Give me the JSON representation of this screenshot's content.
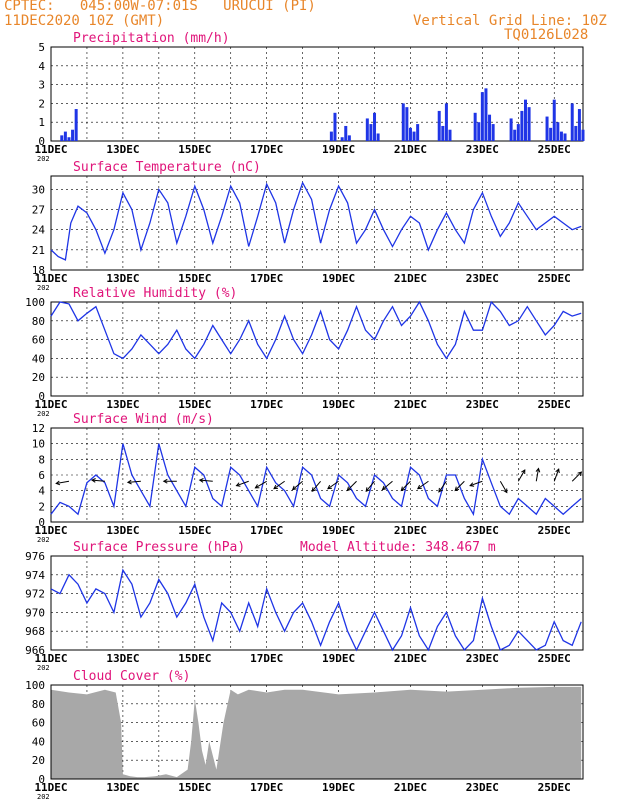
{
  "header": {
    "line1": "CPTEC:   045:00W-07:01S   URUCUI (PI)",
    "line2": "11DEC2020 10Z (GMT)",
    "grid_note": "Vertical Grid Line: 10Z",
    "code": "TQ0126L028"
  },
  "colors": {
    "header": "#e8862a",
    "title": "#e0147a",
    "line": "#1f35e6",
    "bar": "#1f35e6",
    "cloud": "#a8a8a8",
    "wind_arrow": "#000000"
  },
  "xaxis": {
    "start": "11DEC",
    "end": "26DEC 10Z",
    "tick_labels": [
      "11DEC",
      "13DEC",
      "15DEC",
      "17DEC",
      "19DEC",
      "21DEC",
      "23DEC",
      "25DEC"
    ],
    "tick_days": [
      0,
      2,
      4,
      6,
      8,
      10,
      12,
      14
    ],
    "year_fragment": "202"
  },
  "chart_data": [
    {
      "type": "bar",
      "name": "precipitation",
      "title": "Precipitation (mm/h)",
      "ylim": [
        0,
        5
      ],
      "yticks": [
        0,
        1,
        2,
        3,
        4,
        5
      ],
      "x_days": [
        0.3,
        0.4,
        0.5,
        0.6,
        0.7,
        7.8,
        7.9,
        8.1,
        8.2,
        8.3,
        8.8,
        8.9,
        9.0,
        9.1,
        9.8,
        9.9,
        10.0,
        10.1,
        10.2,
        10.8,
        10.9,
        11.0,
        11.1,
        11.8,
        11.9,
        12.0,
        12.1,
        12.2,
        12.3,
        12.8,
        12.9,
        13.0,
        13.1,
        13.2,
        13.3,
        13.8,
        13.9,
        14.0,
        14.1,
        14.2,
        14.3,
        14.5,
        14.6,
        14.7,
        14.8
      ],
      "values": [
        0.3,
        0.5,
        0.2,
        0.6,
        1.7,
        0.5,
        1.5,
        0.2,
        0.8,
        0.3,
        1.2,
        0.9,
        1.5,
        0.4,
        2.0,
        1.8,
        0.7,
        0.5,
        0.9,
        1.6,
        0.8,
        2.0,
        0.6,
        1.5,
        1.0,
        2.6,
        2.8,
        1.4,
        0.9,
        1.2,
        0.6,
        0.9,
        1.6,
        2.2,
        1.8,
        1.3,
        0.7,
        2.2,
        1.0,
        0.5,
        0.4,
        2.0,
        0.8,
        1.7,
        0.6
      ]
    },
    {
      "type": "line",
      "name": "surface_temperature",
      "title": "Surface Temperature (nC)",
      "ylim": [
        18,
        32
      ],
      "yticks": [
        18,
        21,
        24,
        27,
        30
      ],
      "x_days": [
        0,
        0.2,
        0.4,
        0.55,
        0.75,
        1.0,
        1.25,
        1.5,
        1.75,
        2.0,
        2.25,
        2.5,
        2.75,
        3.0,
        3.25,
        3.5,
        3.75,
        4.0,
        4.25,
        4.5,
        4.75,
        5.0,
        5.25,
        5.5,
        5.75,
        6.0,
        6.25,
        6.5,
        6.75,
        7.0,
        7.25,
        7.5,
        7.75,
        8.0,
        8.25,
        8.5,
        8.75,
        9.0,
        9.25,
        9.5,
        9.75,
        10.0,
        10.25,
        10.5,
        10.75,
        11.0,
        11.25,
        11.5,
        11.75,
        12.0,
        12.25,
        12.5,
        12.75,
        13.0,
        13.25,
        13.5,
        13.75,
        14.0,
        14.25,
        14.5,
        14.75
      ],
      "values": [
        21,
        20,
        19.5,
        25,
        27.5,
        26.5,
        24,
        20.5,
        24,
        29.5,
        27,
        21,
        25,
        30,
        28,
        22,
        26,
        30.5,
        27,
        22,
        26,
        30.5,
        28,
        21.5,
        26,
        30.8,
        28,
        22,
        27,
        31,
        28.5,
        22,
        27,
        30.5,
        28,
        22,
        24,
        27,
        24,
        21.5,
        24,
        26,
        25,
        21,
        24,
        26.5,
        24,
        22,
        27,
        29.5,
        26,
        23,
        25,
        28,
        26,
        24,
        25,
        26,
        25,
        24,
        24.5
      ]
    },
    {
      "type": "line",
      "name": "relative_humidity",
      "title": "Relative Humidity (%)",
      "ylim": [
        0,
        100
      ],
      "yticks": [
        0,
        20,
        40,
        60,
        80,
        100
      ],
      "x_days": [
        0,
        0.25,
        0.5,
        0.75,
        1.0,
        1.25,
        1.5,
        1.75,
        2.0,
        2.25,
        2.5,
        2.75,
        3.0,
        3.25,
        3.5,
        3.75,
        4.0,
        4.25,
        4.5,
        4.75,
        5.0,
        5.25,
        5.5,
        5.75,
        6.0,
        6.25,
        6.5,
        6.75,
        7.0,
        7.25,
        7.5,
        7.75,
        8.0,
        8.25,
        8.5,
        8.75,
        9.0,
        9.25,
        9.5,
        9.75,
        10.0,
        10.25,
        10.5,
        10.75,
        11.0,
        11.25,
        11.5,
        11.75,
        12.0,
        12.25,
        12.5,
        12.75,
        13.0,
        13.25,
        13.5,
        13.75,
        14.0,
        14.25,
        14.5,
        14.75
      ],
      "values": [
        85,
        100,
        98,
        80,
        88,
        95,
        70,
        45,
        40,
        50,
        65,
        55,
        45,
        55,
        70,
        50,
        40,
        55,
        75,
        60,
        45,
        60,
        80,
        55,
        40,
        60,
        85,
        60,
        45,
        65,
        90,
        60,
        50,
        70,
        95,
        70,
        60,
        80,
        95,
        75,
        85,
        100,
        80,
        55,
        40,
        55,
        90,
        70,
        70,
        100,
        90,
        75,
        80,
        95,
        80,
        65,
        75,
        90,
        85,
        88
      ]
    },
    {
      "type": "line",
      "name": "surface_wind",
      "title": "Surface Wind (m/s)",
      "ylim": [
        0,
        12
      ],
      "yticks": [
        0,
        2,
        4,
        6,
        8,
        10,
        12
      ],
      "x_days": [
        0,
        0.25,
        0.5,
        0.75,
        1.0,
        1.25,
        1.5,
        1.75,
        2.0,
        2.25,
        2.5,
        2.75,
        3.0,
        3.25,
        3.5,
        3.75,
        4.0,
        4.25,
        4.5,
        4.75,
        5.0,
        5.25,
        5.5,
        5.75,
        6.0,
        6.25,
        6.5,
        6.75,
        7.0,
        7.25,
        7.5,
        7.75,
        8.0,
        8.25,
        8.5,
        8.75,
        9.0,
        9.25,
        9.5,
        9.75,
        10.0,
        10.25,
        10.5,
        10.75,
        11.0,
        11.25,
        11.5,
        11.75,
        12.0,
        12.25,
        12.5,
        12.75,
        13.0,
        13.25,
        13.5,
        13.75,
        14.0,
        14.25,
        14.5,
        14.75
      ],
      "values": [
        1,
        2.5,
        2,
        1,
        5,
        6,
        5,
        2,
        10,
        6,
        4,
        2,
        10,
        6,
        4,
        2,
        7,
        6,
        3,
        2,
        7,
        6,
        4,
        2,
        7,
        5,
        4,
        2,
        7,
        6,
        3,
        2,
        6,
        5,
        3,
        2,
        6,
        5,
        3,
        2,
        7,
        6,
        3,
        2,
        6,
        6,
        3,
        1,
        8,
        5,
        2,
        1,
        3,
        2,
        1,
        3,
        2,
        1,
        2,
        3
      ],
      "arrows_x_days": [
        0.5,
        1.5,
        2.5,
        3.5,
        4.5,
        5.5,
        6.0,
        6.5,
        7.0,
        7.5,
        8.0,
        8.5,
        9.0,
        9.5,
        10.0,
        10.5,
        11.0,
        11.5,
        12.0,
        12.5,
        13.0,
        13.5,
        14.0,
        14.5
      ],
      "arrows_dir_deg": [
        190,
        175,
        185,
        180,
        175,
        200,
        210,
        215,
        220,
        230,
        215,
        225,
        230,
        220,
        225,
        215,
        235,
        225,
        200,
        300,
        60,
        80,
        70,
        45
      ]
    },
    {
      "type": "line",
      "name": "surface_pressure",
      "title": "Surface Pressure (hPa)",
      "annotation": "Model Altitude: 348.467 m",
      "ylim": [
        966,
        976
      ],
      "yticks": [
        966,
        968,
        970,
        972,
        974,
        976
      ],
      "x_days": [
        0,
        0.25,
        0.5,
        0.75,
        1.0,
        1.25,
        1.5,
        1.75,
        2.0,
        2.25,
        2.5,
        2.75,
        3.0,
        3.25,
        3.5,
        3.75,
        4.0,
        4.25,
        4.5,
        4.75,
        5.0,
        5.25,
        5.5,
        5.75,
        6.0,
        6.25,
        6.5,
        6.75,
        7.0,
        7.25,
        7.5,
        7.75,
        8.0,
        8.25,
        8.5,
        8.75,
        9.0,
        9.25,
        9.5,
        9.75,
        10.0,
        10.25,
        10.5,
        10.75,
        11.0,
        11.25,
        11.5,
        11.75,
        12.0,
        12.25,
        12.5,
        12.75,
        13.0,
        13.25,
        13.5,
        13.75,
        14.0,
        14.25,
        14.5,
        14.75
      ],
      "values": [
        972.5,
        972,
        974,
        973,
        971,
        972.5,
        972,
        970,
        974.5,
        973,
        969.5,
        971,
        973.5,
        972,
        969.5,
        971,
        973,
        969.5,
        967,
        971,
        970,
        968,
        971,
        968.5,
        972.5,
        970,
        968,
        970,
        971,
        969,
        966.5,
        969,
        971,
        968,
        966,
        968,
        970,
        968,
        966,
        967.5,
        970.5,
        967.5,
        966,
        968.5,
        970,
        967.5,
        966,
        967,
        971.5,
        968.5,
        966,
        966.5,
        968,
        967,
        966,
        966.5,
        969,
        967,
        966.5,
        969
      ]
    },
    {
      "type": "area",
      "name": "cloud_cover",
      "title": "Cloud Cover (%)",
      "ylim": [
        0,
        100
      ],
      "yticks": [
        0,
        20,
        40,
        60,
        80,
        100
      ],
      "x_days": [
        0,
        0.5,
        1.0,
        1.5,
        1.8,
        1.95,
        2.0,
        2.2,
        2.4,
        2.6,
        2.9,
        3.2,
        3.5,
        3.8,
        3.9,
        4.0,
        4.1,
        4.2,
        4.3,
        4.4,
        4.6,
        4.8,
        5.0,
        5.2,
        5.5,
        6.0,
        6.5,
        7.0,
        8.0,
        9.0,
        10.0,
        11.0,
        12.0,
        13.0,
        14.0,
        14.75
      ],
      "values": [
        95,
        92,
        90,
        95,
        92,
        60,
        5,
        3,
        2,
        2,
        3,
        5,
        2,
        10,
        40,
        85,
        60,
        30,
        15,
        40,
        10,
        60,
        95,
        90,
        95,
        92,
        95,
        95,
        90,
        92,
        95,
        93,
        95,
        97,
        98,
        98
      ]
    }
  ]
}
